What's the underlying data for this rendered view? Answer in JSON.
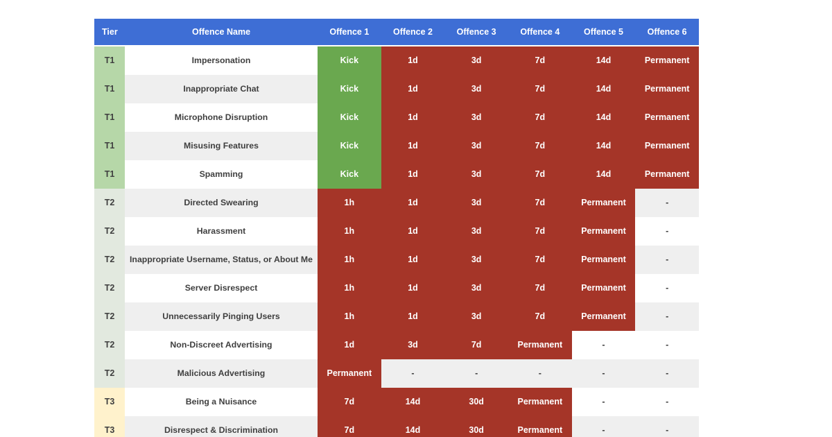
{
  "table": {
    "headers": [
      "Tier",
      "Offence Name",
      "Offence 1",
      "Offence 2",
      "Offence 3",
      "Offence 4",
      "Offence 5",
      "Offence 6"
    ],
    "rows": [
      {
        "tier": "T1",
        "name": "Impersonation",
        "offences": [
          "Kick",
          "1d",
          "3d",
          "7d",
          "14d",
          "Permanent"
        ]
      },
      {
        "tier": "T1",
        "name": "Inappropriate Chat",
        "offences": [
          "Kick",
          "1d",
          "3d",
          "7d",
          "14d",
          "Permanent"
        ]
      },
      {
        "tier": "T1",
        "name": "Microphone Disruption",
        "offences": [
          "Kick",
          "1d",
          "3d",
          "7d",
          "14d",
          "Permanent"
        ]
      },
      {
        "tier": "T1",
        "name": "Misusing Features",
        "offences": [
          "Kick",
          "1d",
          "3d",
          "7d",
          "14d",
          "Permanent"
        ]
      },
      {
        "tier": "T1",
        "name": "Spamming",
        "offences": [
          "Kick",
          "1d",
          "3d",
          "7d",
          "14d",
          "Permanent"
        ]
      },
      {
        "tier": "T2",
        "name": "Directed Swearing",
        "offences": [
          "1h",
          "1d",
          "3d",
          "7d",
          "Permanent",
          "-"
        ]
      },
      {
        "tier": "T2",
        "name": "Harassment",
        "offences": [
          "1h",
          "1d",
          "3d",
          "7d",
          "Permanent",
          "-"
        ]
      },
      {
        "tier": "T2",
        "name": "Inappropriate Username, Status, or About Me",
        "offences": [
          "1h",
          "1d",
          "3d",
          "7d",
          "Permanent",
          "-"
        ]
      },
      {
        "tier": "T2",
        "name": "Server Disrespect",
        "offences": [
          "1h",
          "1d",
          "3d",
          "7d",
          "Permanent",
          "-"
        ]
      },
      {
        "tier": "T2",
        "name": "Unnecessarily Pinging Users",
        "offences": [
          "1h",
          "1d",
          "3d",
          "7d",
          "Permanent",
          "-"
        ]
      },
      {
        "tier": "T2",
        "name": "Non-Discreet Advertising",
        "offences": [
          "1d",
          "3d",
          "7d",
          "Permanent",
          "-",
          "-"
        ]
      },
      {
        "tier": "T2",
        "name": "Malicious Advertising",
        "offences": [
          "Permanent",
          "-",
          "-",
          "-",
          "-",
          "-"
        ]
      },
      {
        "tier": "T3",
        "name": "Being a Nuisance",
        "offences": [
          "7d",
          "14d",
          "30d",
          "Permanent",
          "-",
          "-"
        ]
      },
      {
        "tier": "T3",
        "name": "Disrespect & Discrimination",
        "offences": [
          "7d",
          "14d",
          "30d",
          "Permanent",
          "-",
          "-"
        ]
      }
    ]
  },
  "colors": {
    "header_bg": "#3e6ed5",
    "tier1_bg": "#b6d7a8",
    "tier2_bg": "#e2e9df",
    "tier3_bg": "#fff2cc",
    "kick_bg": "#6aa84f",
    "red_bg": "#a53528",
    "stripe_bg": "#efefef",
    "text_dark": "#3f3f3f"
  }
}
